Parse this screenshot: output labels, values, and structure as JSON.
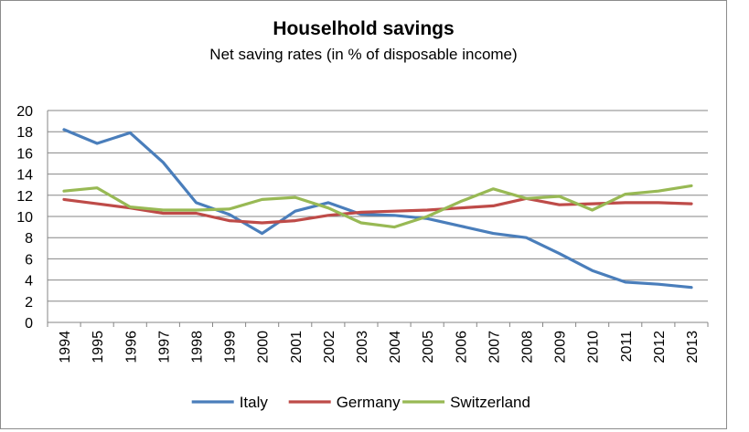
{
  "chart_data": {
    "type": "line",
    "title": "Houselhold savings",
    "subtitle": "Net saving rates (in % of disposable income)",
    "categories": [
      "1994",
      "1995",
      "1996",
      "1997",
      "1998",
      "1999",
      "2000",
      "2001",
      "2002",
      "2003",
      "2004",
      "2005",
      "2006",
      "2007",
      "2008",
      "2009",
      "2010",
      "2011",
      "2012",
      "2013"
    ],
    "series": [
      {
        "name": "Italy",
        "color": "#4a7ebb",
        "values": [
          18.2,
          16.9,
          17.9,
          15.1,
          11.3,
          10.2,
          8.4,
          10.5,
          11.3,
          10.2,
          10.1,
          9.8,
          9.1,
          8.4,
          8.0,
          6.5,
          4.9,
          3.8,
          3.6,
          3.3
        ]
      },
      {
        "name": "Germany",
        "color": "#be4b48",
        "values": [
          11.6,
          11.2,
          10.8,
          10.3,
          10.3,
          9.6,
          9.4,
          9.6,
          10.1,
          10.4,
          10.5,
          10.6,
          10.8,
          11.0,
          11.7,
          11.1,
          11.2,
          11.3,
          11.3,
          11.2
        ]
      },
      {
        "name": "Switzerland",
        "color": "#98b954",
        "values": [
          12.4,
          12.7,
          10.9,
          10.6,
          10.6,
          10.7,
          11.6,
          11.8,
          10.8,
          9.4,
          9.0,
          10.0,
          11.4,
          12.6,
          11.7,
          11.9,
          10.6,
          12.1,
          12.4,
          12.9
        ]
      }
    ],
    "ylim": [
      0,
      20
    ],
    "yticks": [
      "0",
      "2",
      "4",
      "6",
      "8",
      "10",
      "12",
      "14",
      "16",
      "18",
      "20"
    ],
    "grid": true,
    "legend": "bottom"
  }
}
